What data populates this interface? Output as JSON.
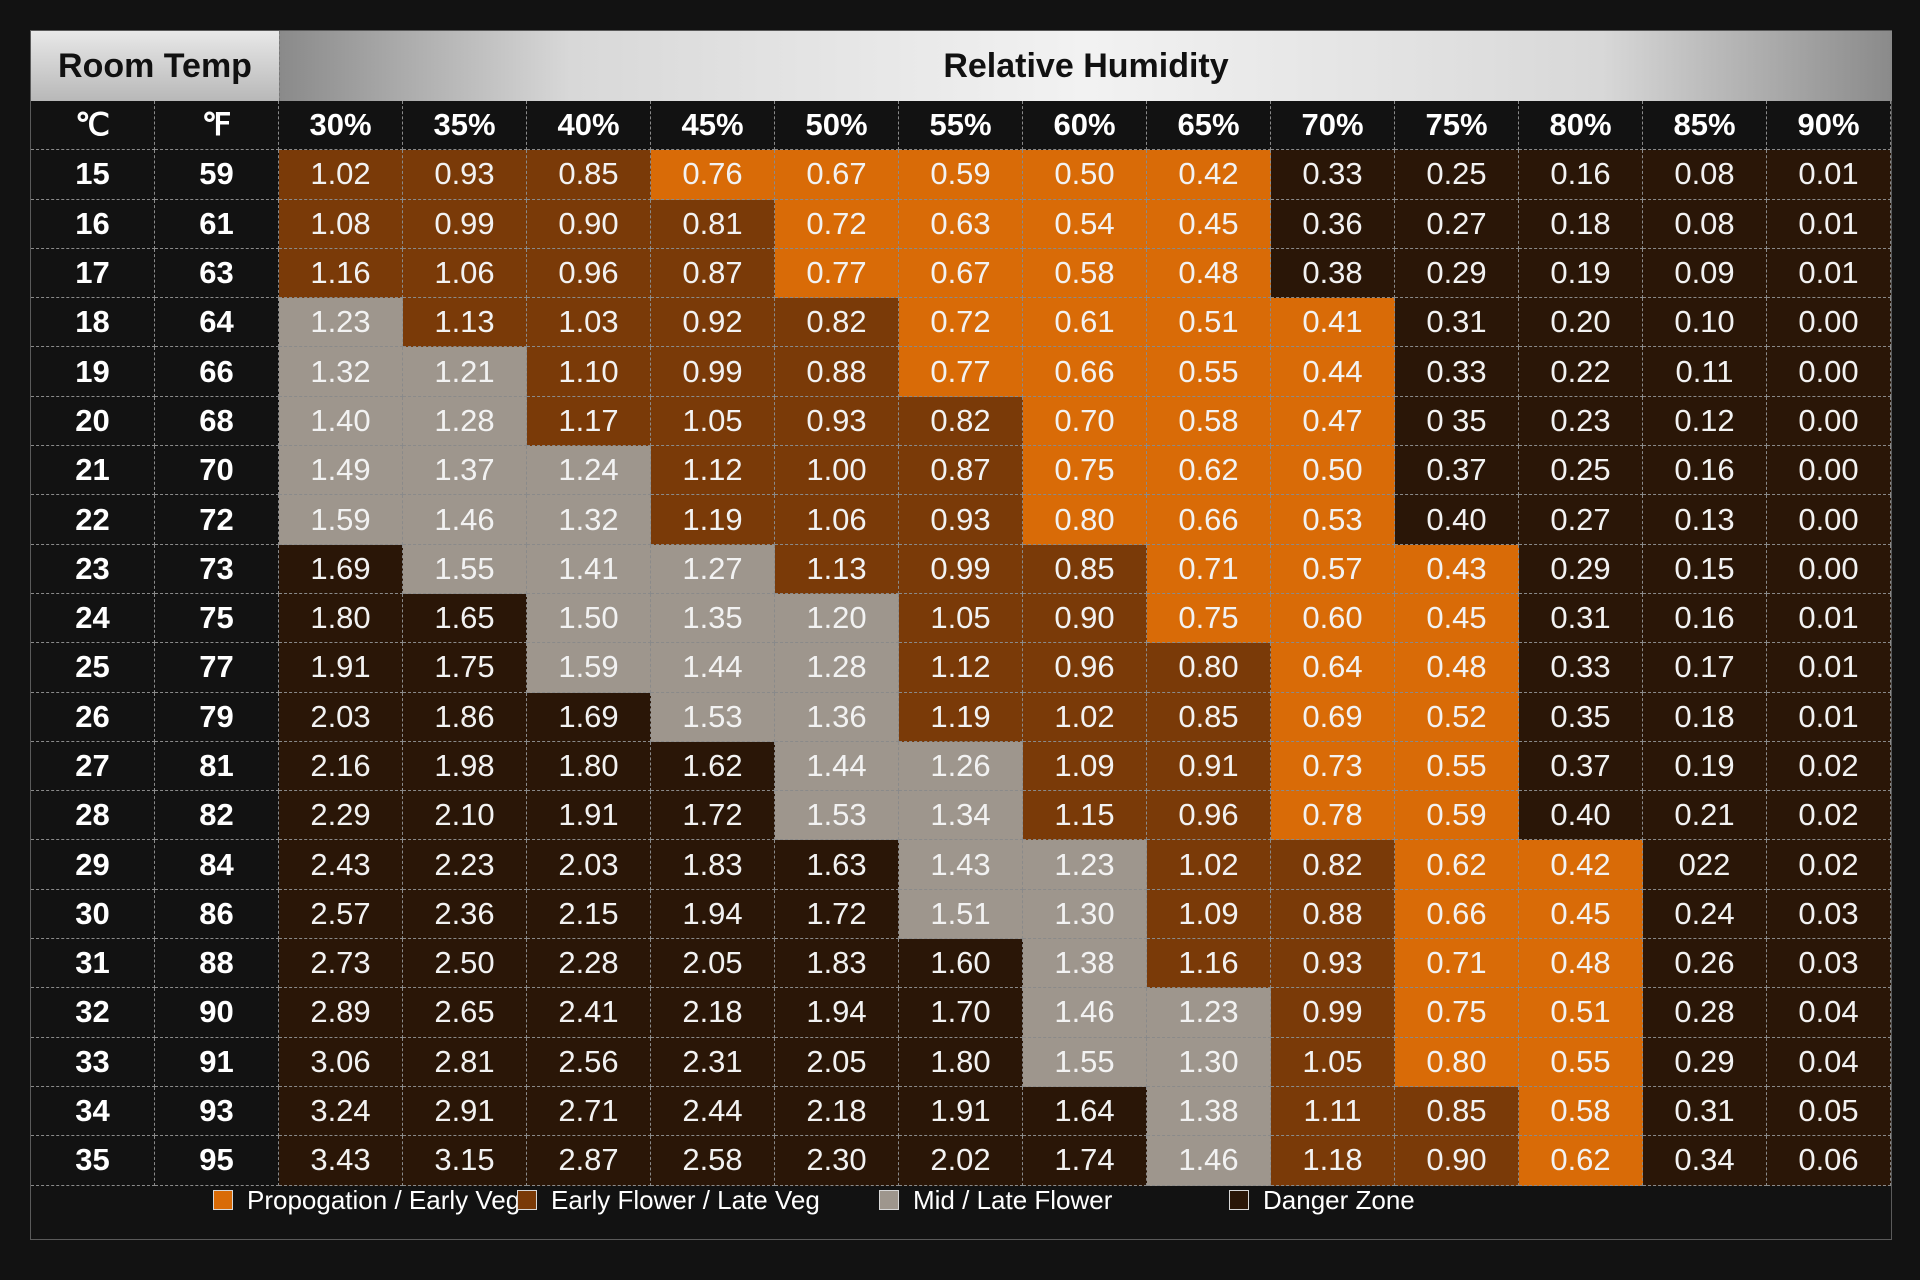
{
  "header": {
    "room_temp": "Room Temp",
    "relative_humidity": "Relative Humidity"
  },
  "colors": {
    "propagation": "#d96b07",
    "early_flower": "#7a3a08",
    "mid_flower": "#9e968d",
    "danger": "#2a1607"
  },
  "chart_data": {
    "type": "table",
    "unit_headers": [
      "℃",
      "℉"
    ],
    "humidity": [
      "30%",
      "35%",
      "40%",
      "45%",
      "50%",
      "55%",
      "60%",
      "65%",
      "70%",
      "75%",
      "80%",
      "85%",
      "90%"
    ],
    "rows": [
      {
        "c": "15",
        "f": "59",
        "v": [
          "1.02",
          "0.93",
          "0.85",
          "0.76",
          "0.67",
          "0.59",
          "0.50",
          "0.42",
          "0.33",
          "0.25",
          "0.16",
          "0.08",
          "0.01"
        ],
        "z": [
          "e",
          "e",
          "e",
          "p",
          "p",
          "p",
          "p",
          "p",
          "d",
          "d",
          "d",
          "d",
          "d"
        ]
      },
      {
        "c": "16",
        "f": "61",
        "v": [
          "1.08",
          "0.99",
          "0.90",
          "0.81",
          "0.72",
          "0.63",
          "0.54",
          "0.45",
          "0.36",
          "0.27",
          "0.18",
          "0.08",
          "0.01"
        ],
        "z": [
          "e",
          "e",
          "e",
          "e",
          "p",
          "p",
          "p",
          "p",
          "d",
          "d",
          "d",
          "d",
          "d"
        ]
      },
      {
        "c": "17",
        "f": "63",
        "v": [
          "1.16",
          "1.06",
          "0.96",
          "0.87",
          "0.77",
          "0.67",
          "0.58",
          "0.48",
          "0.38",
          "0.29",
          "0.19",
          "0.09",
          "0.01"
        ],
        "z": [
          "e",
          "e",
          "e",
          "e",
          "p",
          "p",
          "p",
          "p",
          "d",
          "d",
          "d",
          "d",
          "d"
        ]
      },
      {
        "c": "18",
        "f": "64",
        "v": [
          "1.23",
          "1.13",
          "1.03",
          "0.92",
          "0.82",
          "0.72",
          "0.61",
          "0.51",
          "0.41",
          "0.31",
          "0.20",
          "0.10",
          "0.00"
        ],
        "z": [
          "m",
          "e",
          "e",
          "e",
          "e",
          "p",
          "p",
          "p",
          "p",
          "d",
          "d",
          "d",
          "d"
        ]
      },
      {
        "c": "19",
        "f": "66",
        "v": [
          "1.32",
          "1.21",
          "1.10",
          "0.99",
          "0.88",
          "0.77",
          "0.66",
          "0.55",
          "0.44",
          "0.33",
          "0.22",
          "0.11",
          "0.00"
        ],
        "z": [
          "m",
          "m",
          "e",
          "e",
          "e",
          "p",
          "p",
          "p",
          "p",
          "d",
          "d",
          "d",
          "d"
        ]
      },
      {
        "c": "20",
        "f": "68",
        "v": [
          "1.40",
          "1.28",
          "1.17",
          "1.05",
          "0.93",
          "0.82",
          "0.70",
          "0.58",
          "0.47",
          "0 35",
          "0.23",
          "0.12",
          "0.00"
        ],
        "z": [
          "m",
          "m",
          "e",
          "e",
          "e",
          "e",
          "p",
          "p",
          "p",
          "d",
          "d",
          "d",
          "d"
        ]
      },
      {
        "c": "21",
        "f": "70",
        "v": [
          "1.49",
          "1.37",
          "1.24",
          "1.12",
          "1.00",
          "0.87",
          "0.75",
          "0.62",
          "0.50",
          "0.37",
          "0.25",
          "0.16",
          "0.00"
        ],
        "z": [
          "m",
          "m",
          "m",
          "e",
          "e",
          "e",
          "p",
          "p",
          "p",
          "d",
          "d",
          "d",
          "d"
        ]
      },
      {
        "c": "22",
        "f": "72",
        "v": [
          "1.59",
          "1.46",
          "1.32",
          "1.19",
          "1.06",
          "0.93",
          "0.80",
          "0.66",
          "0.53",
          "0.40",
          "0.27",
          "0.13",
          "0.00"
        ],
        "z": [
          "m",
          "m",
          "m",
          "e",
          "e",
          "e",
          "p",
          "p",
          "p",
          "d",
          "d",
          "d",
          "d"
        ]
      },
      {
        "c": "23",
        "f": "73",
        "v": [
          "1.69",
          "1.55",
          "1.41",
          "1.27",
          "1.13",
          "0.99",
          "0.85",
          "0.71",
          "0.57",
          "0.43",
          "0.29",
          "0.15",
          "0.00"
        ],
        "z": [
          "d",
          "m",
          "m",
          "m",
          "e",
          "e",
          "e",
          "p",
          "p",
          "p",
          "d",
          "d",
          "d"
        ]
      },
      {
        "c": "24",
        "f": "75",
        "v": [
          "1.80",
          "1.65",
          "1.50",
          "1.35",
          "1.20",
          "1.05",
          "0.90",
          "0.75",
          "0.60",
          "0.45",
          "0.31",
          "0.16",
          "0.01"
        ],
        "z": [
          "d",
          "d",
          "m",
          "m",
          "m",
          "e",
          "e",
          "p",
          "p",
          "p",
          "d",
          "d",
          "d"
        ]
      },
      {
        "c": "25",
        "f": "77",
        "v": [
          "1.91",
          "1.75",
          "1.59",
          "1.44",
          "1.28",
          "1.12",
          "0.96",
          "0.80",
          "0.64",
          "0.48",
          "0.33",
          "0.17",
          "0.01"
        ],
        "z": [
          "d",
          "d",
          "m",
          "m",
          "m",
          "e",
          "e",
          "e",
          "p",
          "p",
          "d",
          "d",
          "d"
        ]
      },
      {
        "c": "26",
        "f": "79",
        "v": [
          "2.03",
          "1.86",
          "1.69",
          "1.53",
          "1.36",
          "1.19",
          "1.02",
          "0.85",
          "0.69",
          "0.52",
          "0.35",
          "0.18",
          "0.01"
        ],
        "z": [
          "d",
          "d",
          "d",
          "m",
          "m",
          "e",
          "e",
          "e",
          "p",
          "p",
          "d",
          "d",
          "d"
        ]
      },
      {
        "c": "27",
        "f": "81",
        "v": [
          "2.16",
          "1.98",
          "1.80",
          "1.62",
          "1.44",
          "1.26",
          "1.09",
          "0.91",
          "0.73",
          "0.55",
          "0.37",
          "0.19",
          "0.02"
        ],
        "z": [
          "d",
          "d",
          "d",
          "d",
          "m",
          "m",
          "e",
          "e",
          "p",
          "p",
          "d",
          "d",
          "d"
        ]
      },
      {
        "c": "28",
        "f": "82",
        "v": [
          "2.29",
          "2.10",
          "1.91",
          "1.72",
          "1.53",
          "1.34",
          "1.15",
          "0.96",
          "0.78",
          "0.59",
          "0.40",
          "0.21",
          "0.02"
        ],
        "z": [
          "d",
          "d",
          "d",
          "d",
          "m",
          "m",
          "e",
          "e",
          "p",
          "p",
          "d",
          "d",
          "d"
        ]
      },
      {
        "c": "29",
        "f": "84",
        "v": [
          "2.43",
          "2.23",
          "2.03",
          "1.83",
          "1.63",
          "1.43",
          "1.23",
          "1.02",
          "0.82",
          "0.62",
          "0.42",
          "022",
          "0.02"
        ],
        "z": [
          "d",
          "d",
          "d",
          "d",
          "d",
          "m",
          "m",
          "e",
          "e",
          "p",
          "p",
          "d",
          "d"
        ]
      },
      {
        "c": "30",
        "f": "86",
        "v": [
          "2.57",
          "2.36",
          "2.15",
          "1.94",
          "1.72",
          "1.51",
          "1.30",
          "1.09",
          "0.88",
          "0.66",
          "0.45",
          "0.24",
          "0.03"
        ],
        "z": [
          "d",
          "d",
          "d",
          "d",
          "d",
          "m",
          "m",
          "e",
          "e",
          "p",
          "p",
          "d",
          "d"
        ]
      },
      {
        "c": "31",
        "f": "88",
        "v": [
          "2.73",
          "2.50",
          "2.28",
          "2.05",
          "1.83",
          "1.60",
          "1.38",
          "1.16",
          "0.93",
          "0.71",
          "0.48",
          "0.26",
          "0.03"
        ],
        "z": [
          "d",
          "d",
          "d",
          "d",
          "d",
          "d",
          "m",
          "e",
          "e",
          "p",
          "p",
          "d",
          "d"
        ]
      },
      {
        "c": "32",
        "f": "90",
        "v": [
          "2.89",
          "2.65",
          "2.41",
          "2.18",
          "1.94",
          "1.70",
          "1.46",
          "1.23",
          "0.99",
          "0.75",
          "0.51",
          "0.28",
          "0.04"
        ],
        "z": [
          "d",
          "d",
          "d",
          "d",
          "d",
          "d",
          "m",
          "m",
          "e",
          "p",
          "p",
          "d",
          "d"
        ]
      },
      {
        "c": "33",
        "f": "91",
        "v": [
          "3.06",
          "2.81",
          "2.56",
          "2.31",
          "2.05",
          "1.80",
          "1.55",
          "1.30",
          "1.05",
          "0.80",
          "0.55",
          "0.29",
          "0.04"
        ],
        "z": [
          "d",
          "d",
          "d",
          "d",
          "d",
          "d",
          "m",
          "m",
          "e",
          "p",
          "p",
          "d",
          "d"
        ]
      },
      {
        "c": "34",
        "f": "93",
        "v": [
          "3.24",
          "2.91",
          "2.71",
          "2.44",
          "2.18",
          "1.91",
          "1.64",
          "1.38",
          "1.11",
          "0.85",
          "0.58",
          "0.31",
          "0.05"
        ],
        "z": [
          "d",
          "d",
          "d",
          "d",
          "d",
          "d",
          "d",
          "m",
          "e",
          "e",
          "p",
          "d",
          "d"
        ]
      },
      {
        "c": "35",
        "f": "95",
        "v": [
          "3.43",
          "3.15",
          "2.87",
          "2.58",
          "2.30",
          "2.02",
          "1.74",
          "1.46",
          "1.18",
          "0.90",
          "0.62",
          "0.34",
          "0.06"
        ],
        "z": [
          "d",
          "d",
          "d",
          "d",
          "d",
          "d",
          "d",
          "m",
          "e",
          "e",
          "p",
          "d",
          "d"
        ]
      }
    ],
    "legend": [
      {
        "label": "Propogation / Early Veg",
        "key": "p"
      },
      {
        "label": "Early Flower / Late Veg",
        "key": "e"
      },
      {
        "label": "Mid / Late Flower",
        "key": "m"
      },
      {
        "label": "Danger Zone",
        "key": "d"
      }
    ]
  }
}
